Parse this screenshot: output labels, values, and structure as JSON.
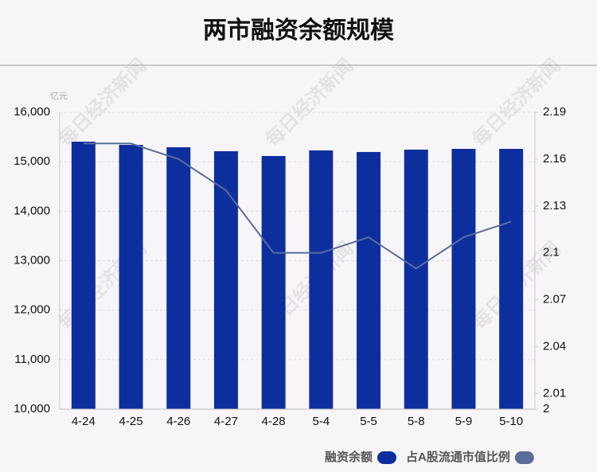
{
  "chart_data": {
    "type": "bar-line",
    "title": "两市融资余额规模",
    "y_unit": "亿元",
    "watermark": "每日经济新闻",
    "categories": [
      "4-24",
      "4-25",
      "4-26",
      "4-27",
      "4-28",
      "5-4",
      "5-5",
      "5-8",
      "5-9",
      "5-10"
    ],
    "series": [
      {
        "name": "融资余额",
        "type": "bar",
        "color": "#0d2f9e",
        "values": [
          15405,
          15340,
          15292,
          15212,
          15115,
          15228,
          15196,
          15244,
          15260,
          15260
        ]
      },
      {
        "name": "占A股流通市值比例",
        "type": "line",
        "axis": "y2",
        "color": "#5a6c9a",
        "values": [
          2.17,
          2.17,
          2.16,
          2.14,
          2.1,
          2.1,
          2.11,
          2.09,
          2.11,
          2.12
        ]
      }
    ],
    "ylim": [
      10000,
      16000
    ],
    "yticks": [
      {
        "value": 10000,
        "label": "10,000"
      },
      {
        "value": 11000,
        "label": "11,000"
      },
      {
        "value": 12000,
        "label": "12,000"
      },
      {
        "value": 13000,
        "label": "13,000"
      },
      {
        "value": 14000,
        "label": "14,000"
      },
      {
        "value": 15000,
        "label": "15,000"
      },
      {
        "value": 16000,
        "label": "16,000"
      }
    ],
    "y2lim": [
      2,
      2.19
    ],
    "y2ticks": [
      2,
      2.01,
      2.04,
      2.07,
      2.1,
      2.13,
      2.16,
      2.19
    ],
    "grid": true
  }
}
